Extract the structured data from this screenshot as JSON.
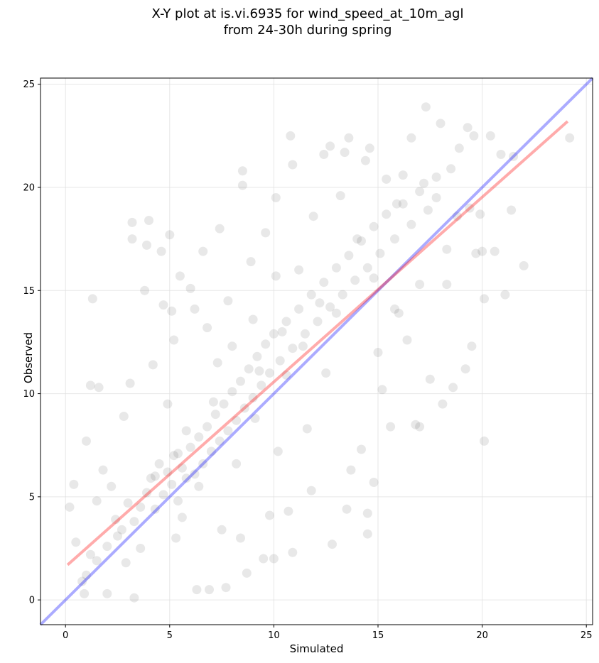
{
  "chart_data": {
    "type": "scatter",
    "title_line1": "X-Y plot at is.vi.6935 for wind_speed_at_10m_agl",
    "title_line2": "from 24-30h during spring",
    "xlabel": "Simulated",
    "ylabel": "Observed",
    "xlim": [
      -1.2,
      25.3
    ],
    "ylim": [
      -1.2,
      25.3
    ],
    "xticks": [
      0,
      5,
      10,
      15,
      20,
      25
    ],
    "yticks": [
      0,
      5,
      10,
      15,
      20,
      25
    ],
    "grid": true,
    "colors": {
      "points": "#000000",
      "fit_line": "#ff0000",
      "one_to_one": "#0000ff"
    },
    "one_to_one_line": {
      "from": [
        -1.2,
        -1.2
      ],
      "to": [
        25.3,
        25.3
      ]
    },
    "fit_line": {
      "from": [
        0.1,
        1.7
      ],
      "to": [
        24.1,
        23.2
      ]
    },
    "points": [
      [
        0.2,
        4.5
      ],
      [
        0.4,
        5.6
      ],
      [
        0.5,
        2.8
      ],
      [
        0.8,
        0.9
      ],
      [
        0.9,
        0.3
      ],
      [
        1.0,
        7.7
      ],
      [
        1.2,
        10.4
      ],
      [
        1.3,
        14.6
      ],
      [
        1.6,
        10.3
      ],
      [
        1.2,
        2.2
      ],
      [
        1.5,
        4.8
      ],
      [
        1.8,
        6.3
      ],
      [
        2.0,
        0.3
      ],
      [
        2.2,
        5.5
      ],
      [
        2.5,
        3.1
      ],
      [
        2.8,
        8.9
      ],
      [
        2.9,
        1.8
      ],
      [
        3.1,
        10.5
      ],
      [
        3.2,
        18.3
      ],
      [
        3.2,
        17.5
      ],
      [
        3.3,
        0.1
      ],
      [
        3.6,
        2.5
      ],
      [
        3.8,
        15.0
      ],
      [
        3.9,
        17.2
      ],
      [
        4.0,
        18.4
      ],
      [
        4.2,
        11.4
      ],
      [
        4.3,
        6.0
      ],
      [
        4.6,
        16.9
      ],
      [
        4.7,
        14.3
      ],
      [
        4.9,
        9.5
      ],
      [
        5.0,
        17.7
      ],
      [
        5.1,
        14.0
      ],
      [
        5.2,
        12.6
      ],
      [
        5.3,
        3.0
      ],
      [
        5.4,
        7.1
      ],
      [
        5.5,
        15.7
      ],
      [
        5.6,
        4.0
      ],
      [
        5.8,
        8.2
      ],
      [
        6.0,
        15.1
      ],
      [
        6.2,
        14.1
      ],
      [
        6.3,
        0.5
      ],
      [
        6.4,
        5.5
      ],
      [
        6.6,
        16.9
      ],
      [
        6.8,
        13.2
      ],
      [
        6.9,
        0.5
      ],
      [
        7.1,
        9.6
      ],
      [
        7.3,
        11.5
      ],
      [
        7.4,
        18.0
      ],
      [
        7.5,
        3.4
      ],
      [
        7.7,
        0.6
      ],
      [
        7.8,
        14.5
      ],
      [
        8.0,
        12.3
      ],
      [
        8.2,
        6.6
      ],
      [
        8.4,
        3.0
      ],
      [
        8.5,
        20.8
      ],
      [
        8.5,
        20.1
      ],
      [
        8.7,
        1.3
      ],
      [
        8.9,
        16.4
      ],
      [
        9.0,
        13.6
      ],
      [
        9.1,
        8.8
      ],
      [
        9.3,
        11.1
      ],
      [
        9.5,
        2.0
      ],
      [
        9.6,
        17.8
      ],
      [
        9.8,
        4.1
      ],
      [
        10.0,
        2.0
      ],
      [
        10.1,
        19.5
      ],
      [
        10.1,
        15.7
      ],
      [
        10.2,
        7.2
      ],
      [
        10.4,
        13.0
      ],
      [
        10.6,
        10.9
      ],
      [
        10.7,
        4.3
      ],
      [
        10.8,
        22.5
      ],
      [
        10.9,
        2.3
      ],
      [
        10.9,
        21.1
      ],
      [
        11.2,
        16.0
      ],
      [
        11.4,
        12.3
      ],
      [
        11.6,
        8.3
      ],
      [
        11.8,
        5.3
      ],
      [
        11.9,
        18.6
      ],
      [
        12.2,
        14.4
      ],
      [
        12.4,
        21.6
      ],
      [
        12.5,
        11.0
      ],
      [
        12.7,
        22.0
      ],
      [
        12.8,
        2.7
      ],
      [
        13.0,
        13.9
      ],
      [
        13.2,
        19.6
      ],
      [
        13.4,
        21.7
      ],
      [
        13.5,
        4.4
      ],
      [
        13.6,
        22.4
      ],
      [
        13.7,
        6.3
      ],
      [
        14.0,
        17.5
      ],
      [
        14.2,
        7.3
      ],
      [
        14.4,
        21.3
      ],
      [
        14.5,
        4.2
      ],
      [
        14.5,
        3.2
      ],
      [
        14.6,
        21.9
      ],
      [
        14.8,
        15.6
      ],
      [
        14.8,
        5.7
      ],
      [
        15.0,
        12.0
      ],
      [
        15.2,
        10.2
      ],
      [
        15.4,
        20.4
      ],
      [
        15.6,
        8.4
      ],
      [
        15.8,
        14.1
      ],
      [
        15.9,
        19.2
      ],
      [
        16.2,
        20.6
      ],
      [
        16.4,
        12.6
      ],
      [
        16.6,
        22.4
      ],
      [
        16.8,
        8.5
      ],
      [
        17.0,
        8.4
      ],
      [
        17.2,
        20.2
      ],
      [
        17.3,
        23.9
      ],
      [
        17.5,
        10.7
      ],
      [
        17.8,
        20.5
      ],
      [
        18.0,
        23.1
      ],
      [
        18.1,
        9.5
      ],
      [
        18.3,
        15.3
      ],
      [
        18.5,
        20.9
      ],
      [
        18.6,
        10.3
      ],
      [
        18.9,
        21.9
      ],
      [
        19.2,
        11.2
      ],
      [
        19.3,
        22.9
      ],
      [
        19.5,
        12.3
      ],
      [
        19.6,
        22.5
      ],
      [
        19.7,
        16.8
      ],
      [
        20.0,
        16.9
      ],
      [
        20.1,
        7.7
      ],
      [
        20.1,
        14.6
      ],
      [
        20.4,
        22.5
      ],
      [
        20.6,
        16.9
      ],
      [
        20.9,
        21.6
      ],
      [
        21.1,
        14.8
      ],
      [
        21.4,
        18.9
      ],
      [
        21.5,
        21.5
      ],
      [
        22.0,
        16.2
      ],
      [
        24.2,
        22.4
      ],
      [
        1.0,
        1.2
      ],
      [
        1.5,
        1.9
      ],
      [
        2.0,
        2.6
      ],
      [
        2.4,
        3.9
      ],
      [
        2.7,
        3.4
      ],
      [
        3.0,
        4.7
      ],
      [
        3.3,
        3.8
      ],
      [
        3.6,
        4.5
      ],
      [
        3.9,
        5.2
      ],
      [
        4.1,
        5.9
      ],
      [
        4.3,
        4.4
      ],
      [
        4.5,
        6.6
      ],
      [
        4.7,
        5.1
      ],
      [
        4.9,
        6.2
      ],
      [
        5.1,
        5.6
      ],
      [
        5.2,
        7.0
      ],
      [
        5.4,
        4.8
      ],
      [
        5.6,
        6.4
      ],
      [
        5.8,
        5.9
      ],
      [
        6.0,
        7.4
      ],
      [
        6.2,
        6.1
      ],
      [
        6.4,
        7.9
      ],
      [
        6.6,
        6.6
      ],
      [
        6.8,
        8.4
      ],
      [
        7.0,
        7.2
      ],
      [
        7.2,
        9.0
      ],
      [
        7.4,
        7.7
      ],
      [
        7.6,
        9.5
      ],
      [
        7.8,
        8.2
      ],
      [
        8.0,
        10.1
      ],
      [
        8.2,
        8.7
      ],
      [
        8.4,
        10.6
      ],
      [
        8.6,
        9.3
      ],
      [
        8.8,
        11.2
      ],
      [
        9.0,
        9.8
      ],
      [
        9.2,
        11.8
      ],
      [
        9.4,
        10.4
      ],
      [
        9.6,
        12.4
      ],
      [
        9.8,
        11.0
      ],
      [
        10.0,
        12.9
      ],
      [
        10.3,
        11.6
      ],
      [
        10.6,
        13.5
      ],
      [
        10.9,
        12.2
      ],
      [
        11.2,
        14.1
      ],
      [
        11.5,
        12.9
      ],
      [
        11.8,
        14.8
      ],
      [
        12.1,
        13.5
      ],
      [
        12.4,
        15.4
      ],
      [
        12.7,
        14.2
      ],
      [
        13.0,
        16.1
      ],
      [
        13.3,
        14.8
      ],
      [
        13.6,
        16.7
      ],
      [
        13.9,
        15.5
      ],
      [
        14.2,
        17.4
      ],
      [
        14.5,
        16.1
      ],
      [
        14.8,
        18.1
      ],
      [
        15.1,
        16.8
      ],
      [
        15.4,
        18.7
      ],
      [
        15.8,
        17.5
      ],
      [
        16.2,
        19.2
      ],
      [
        16.6,
        18.2
      ],
      [
        17.0,
        19.8
      ],
      [
        17.4,
        18.9
      ],
      [
        17.8,
        19.5
      ],
      [
        18.3,
        17.0
      ],
      [
        18.8,
        18.6
      ],
      [
        19.4,
        19.0
      ],
      [
        19.9,
        18.7
      ],
      [
        17.0,
        15.3
      ],
      [
        16.0,
        13.9
      ]
    ]
  }
}
